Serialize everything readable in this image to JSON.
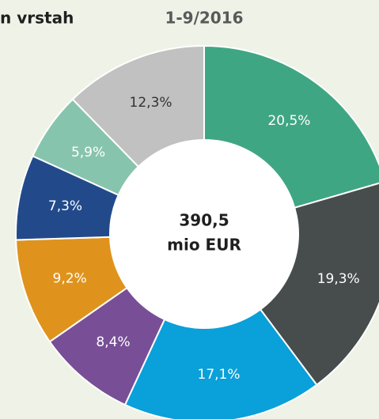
{
  "chart_data": {
    "type": "donut",
    "title": "n vrstah",
    "subtitle": "1-9/2016",
    "center_text": [
      "390,5",
      "mio EUR"
    ],
    "values": [
      20.5,
      19.3,
      17.1,
      8.4,
      9.2,
      7.3,
      5.9,
      12.3
    ],
    "value_labels": [
      "20,5%",
      "19,3%",
      "17,1%",
      "8,4%",
      "9,2%",
      "7,3%",
      "5,9%",
      "12,3%"
    ],
    "colors": [
      "#3fa683",
      "#474c4c",
      "#0aa0d9",
      "#784f96",
      "#df931d",
      "#224a8b",
      "#87c4ae",
      "#c1c1c1"
    ],
    "label_colors": [
      "#ffffff",
      "#ffffff",
      "#ffffff",
      "#ffffff",
      "#ffffff",
      "#ffffff",
      "#ffffff",
      "#333333"
    ]
  }
}
